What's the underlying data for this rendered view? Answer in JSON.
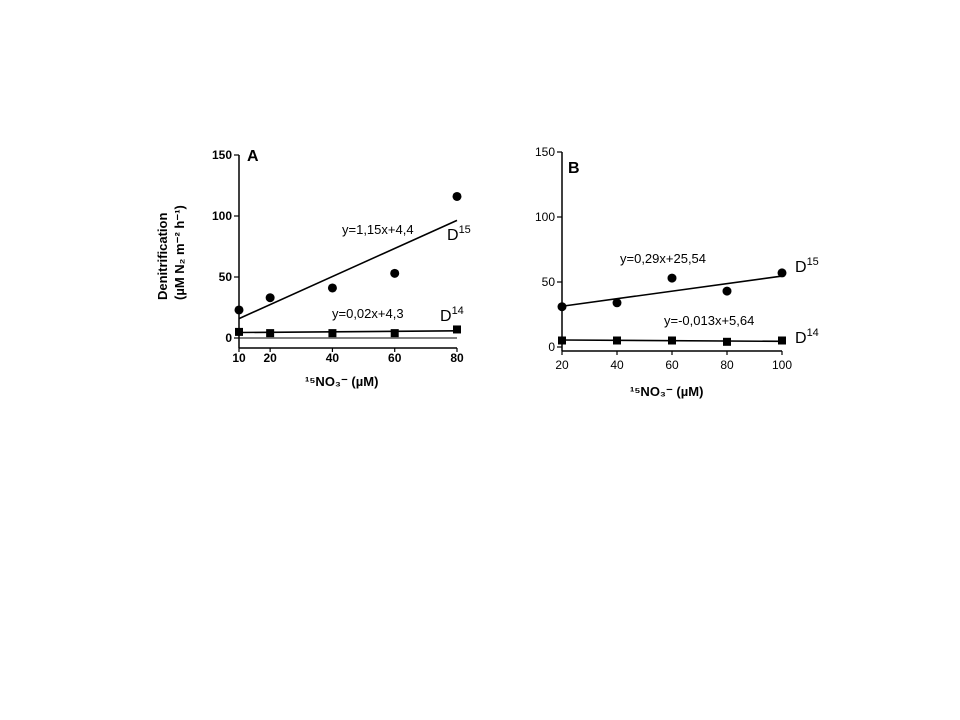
{
  "chart_data": [
    {
      "panel": "A",
      "type": "scatter",
      "ylabel_line1": "Denitrification",
      "ylabel_line2": "(µM N₂ m⁻² h⁻¹)",
      "xlabel": "¹⁵NO₃⁻ (µM)",
      "xlim": [
        10,
        80
      ],
      "ylim": [
        0,
        150
      ],
      "xticks": [
        "10",
        "20",
        "40",
        "60",
        "80"
      ],
      "yticks": [
        "0",
        "50",
        "100",
        "150"
      ],
      "series": [
        {
          "name": "D15",
          "marker": "circle",
          "x": [
            10,
            20,
            40,
            60,
            80
          ],
          "y": [
            23,
            33,
            41,
            53,
            116
          ],
          "fit": {
            "slope": 1.15,
            "intercept": 4.4,
            "label": "y=1,15x+4,4"
          }
        },
        {
          "name": "D14",
          "marker": "square",
          "x": [
            10,
            20,
            40,
            60,
            80
          ],
          "y": [
            5,
            4,
            4,
            4,
            7
          ],
          "fit": {
            "slope": 0.02,
            "intercept": 4.3,
            "label": "y=0,02x+4,3"
          }
        }
      ]
    },
    {
      "panel": "B",
      "type": "scatter",
      "xlabel": "¹⁵NO₃⁻ (µM)",
      "xlim": [
        20,
        100
      ],
      "ylim": [
        0,
        150
      ],
      "xticks": [
        "20",
        "40",
        "60",
        "80",
        "100"
      ],
      "yticks": [
        "0",
        "50",
        "100",
        "150"
      ],
      "series": [
        {
          "name": "D15",
          "marker": "circle",
          "x": [
            20,
            40,
            60,
            80,
            100
          ],
          "y": [
            31,
            34,
            53,
            43,
            57
          ],
          "fit": {
            "slope": 0.29,
            "intercept": 25.54,
            "label": "y=0,29x+25,54"
          }
        },
        {
          "name": "D14",
          "marker": "square",
          "x": [
            20,
            40,
            60,
            80,
            100
          ],
          "y": [
            5,
            5,
            5,
            4,
            5
          ],
          "fit": {
            "slope": -0.013,
            "intercept": 5.64,
            "label": "y=-0,013x+5,64"
          }
        }
      ]
    }
  ]
}
